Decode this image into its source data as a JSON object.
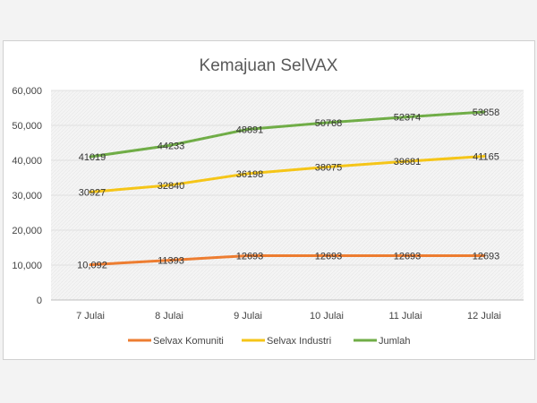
{
  "chart_data": {
    "type": "line",
    "title": "Kemajuan SelVAX",
    "categories": [
      "7 Julai",
      "8 Julai",
      "9 Julai",
      "10 Julai",
      "11 Julai",
      "12 Julai"
    ],
    "series": [
      {
        "name": "Selvax Komuniti",
        "color": "#ED7D31",
        "values": [
          10092,
          11393,
          12693,
          12693,
          12693,
          12693
        ],
        "labels": [
          "10,092",
          "11393",
          "12693",
          "12693",
          "12693",
          "12693"
        ]
      },
      {
        "name": "Selvax Industri",
        "color": "#F5C518",
        "values": [
          30927,
          32840,
          36198,
          38075,
          39681,
          41165
        ],
        "labels": [
          "30927",
          "32840",
          "36198",
          "38075",
          "39681",
          "41165"
        ]
      },
      {
        "name": "Jumlah",
        "color": "#70AD47",
        "values": [
          41019,
          44233,
          48891,
          50768,
          52374,
          53858
        ],
        "labels": [
          "41019",
          "44233",
          "48891",
          "50768",
          "52374",
          "53858"
        ]
      }
    ],
    "yticks": [
      "0",
      "10,000",
      "20,000",
      "30,000",
      "40,000",
      "50,000",
      "60,000"
    ],
    "ylim": [
      0,
      60000
    ],
    "grid": true,
    "legend": "bottom"
  }
}
